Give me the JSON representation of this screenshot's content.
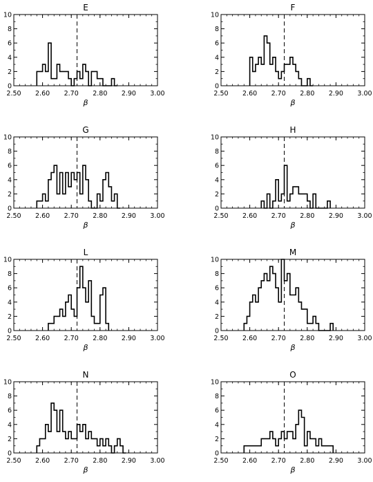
{
  "chart_data": [
    {
      "type": "histogram",
      "title": "E",
      "xlabel": "β",
      "xlim": [
        2.5,
        3.0
      ],
      "ylim": [
        0,
        10
      ],
      "xticks": [
        "2.50",
        "2.60",
        "2.70",
        "2.80",
        "2.90",
        "3.00"
      ],
      "yticks": [
        "0",
        "2",
        "4",
        "6",
        "8",
        "10"
      ],
      "bin_width": 0.01,
      "reference_line": 2.72,
      "bins": [
        2.58,
        2.59,
        2.6,
        2.61,
        2.62,
        2.63,
        2.64,
        2.65,
        2.66,
        2.67,
        2.68,
        2.69,
        2.7,
        2.71,
        2.72,
        2.73,
        2.74,
        2.75,
        2.76,
        2.77,
        2.78,
        2.79,
        2.8,
        2.81,
        2.82,
        2.83,
        2.84,
        2.85
      ],
      "values": [
        2,
        2,
        3,
        2,
        6,
        1,
        1,
        3,
        2,
        2,
        2,
        1,
        0,
        1,
        2,
        1,
        3,
        2,
        0,
        2,
        2,
        1,
        1,
        0,
        0,
        0,
        1,
        0
      ]
    },
    {
      "type": "histogram",
      "title": "F",
      "xlabel": "β",
      "xlim": [
        2.5,
        3.0
      ],
      "ylim": [
        0,
        10
      ],
      "xticks": [
        "2.50",
        "2.60",
        "2.70",
        "2.80",
        "2.90",
        "3.00"
      ],
      "yticks": [
        "0",
        "2",
        "4",
        "6",
        "8",
        "10"
      ],
      "bin_width": 0.01,
      "reference_line": 2.72,
      "bins": [
        2.6,
        2.61,
        2.62,
        2.63,
        2.64,
        2.65,
        2.66,
        2.67,
        2.68,
        2.69,
        2.7,
        2.71,
        2.72,
        2.73,
        2.74,
        2.75,
        2.76,
        2.77,
        2.78,
        2.79,
        2.8,
        2.81
      ],
      "values": [
        4,
        2,
        3,
        4,
        3,
        7,
        6,
        3,
        4,
        2,
        1,
        2,
        3,
        3,
        4,
        3,
        2,
        1,
        0,
        0,
        1,
        0
      ]
    },
    {
      "type": "histogram",
      "title": "G",
      "xlabel": "β",
      "xlim": [
        2.5,
        3.0
      ],
      "ylim": [
        0,
        10
      ],
      "xticks": [
        "2.50",
        "2.60",
        "2.70",
        "2.80",
        "2.90",
        "3.00"
      ],
      "yticks": [
        "0",
        "2",
        "4",
        "6",
        "8",
        "10"
      ],
      "bin_width": 0.01,
      "reference_line": 2.72,
      "bins": [
        2.58,
        2.59,
        2.6,
        2.61,
        2.62,
        2.63,
        2.64,
        2.65,
        2.66,
        2.67,
        2.68,
        2.69,
        2.7,
        2.71,
        2.72,
        2.73,
        2.74,
        2.75,
        2.76,
        2.77,
        2.78,
        2.79,
        2.8,
        2.81,
        2.82,
        2.83,
        2.84,
        2.85,
        2.86
      ],
      "values": [
        1,
        1,
        2,
        1,
        4,
        5,
        6,
        2,
        5,
        2,
        5,
        3,
        5,
        4,
        5,
        2,
        6,
        4,
        1,
        0,
        0,
        2,
        1,
        4,
        5,
        3,
        1,
        2,
        0
      ]
    },
    {
      "type": "histogram",
      "title": "H",
      "xlabel": "β",
      "xlim": [
        2.5,
        3.0
      ],
      "ylim": [
        0,
        10
      ],
      "xticks": [
        "2.50",
        "2.60",
        "2.70",
        "2.80",
        "2.90",
        "3.00"
      ],
      "yticks": [
        "0",
        "2",
        "4",
        "6",
        "8",
        "10"
      ],
      "bin_width": 0.01,
      "reference_line": 2.72,
      "bins": [
        2.64,
        2.65,
        2.66,
        2.67,
        2.68,
        2.69,
        2.7,
        2.71,
        2.72,
        2.73,
        2.74,
        2.75,
        2.76,
        2.77,
        2.78,
        2.79,
        2.8,
        2.81,
        2.82,
        2.83,
        2.84,
        2.85,
        2.86,
        2.87
      ],
      "values": [
        1,
        0,
        2,
        0,
        1,
        4,
        1,
        2,
        6,
        1,
        2,
        3,
        3,
        2,
        2,
        2,
        1,
        0,
        2,
        0,
        0,
        0,
        0,
        1
      ]
    },
    {
      "type": "histogram",
      "title": "L",
      "xlabel": "β",
      "xlim": [
        2.5,
        3.0
      ],
      "ylim": [
        0,
        10
      ],
      "xticks": [
        "2.50",
        "2.60",
        "2.70",
        "2.80",
        "2.90",
        "3.00"
      ],
      "yticks": [
        "0",
        "2",
        "4",
        "6",
        "8",
        "10"
      ],
      "bin_width": 0.01,
      "reference_line": 2.72,
      "bins": [
        2.62,
        2.63,
        2.64,
        2.65,
        2.66,
        2.67,
        2.68,
        2.69,
        2.7,
        2.71,
        2.72,
        2.73,
        2.74,
        2.75,
        2.76,
        2.77,
        2.78,
        2.79,
        2.8,
        2.81,
        2.82
      ],
      "values": [
        1,
        1,
        2,
        2,
        3,
        2,
        4,
        5,
        3,
        2,
        6,
        9,
        6,
        4,
        7,
        2,
        1,
        1,
        5,
        6,
        1
      ]
    },
    {
      "type": "histogram",
      "title": "M",
      "xlabel": "β",
      "xlim": [
        2.5,
        3.0
      ],
      "ylim": [
        0,
        10
      ],
      "xticks": [
        "2.50",
        "2.60",
        "2.70",
        "2.80",
        "2.90",
        "3.00"
      ],
      "yticks": [
        "0",
        "2",
        "4",
        "6",
        "8",
        "10"
      ],
      "bin_width": 0.01,
      "reference_line": 2.72,
      "bins": [
        2.58,
        2.59,
        2.6,
        2.61,
        2.62,
        2.63,
        2.64,
        2.65,
        2.66,
        2.67,
        2.68,
        2.69,
        2.7,
        2.71,
        2.72,
        2.73,
        2.74,
        2.75,
        2.76,
        2.77,
        2.78,
        2.79,
        2.8,
        2.81,
        2.82,
        2.83,
        2.84,
        2.85,
        2.86,
        2.87,
        2.88
      ],
      "values": [
        1,
        2,
        4,
        5,
        4,
        6,
        7,
        8,
        7,
        9,
        8,
        6,
        4,
        10,
        7,
        8,
        5,
        5,
        6,
        4,
        3,
        3,
        1,
        1,
        2,
        1,
        0,
        0,
        0,
        0,
        1
      ]
    },
    {
      "type": "histogram",
      "title": "N",
      "xlabel": "β",
      "xlim": [
        2.5,
        3.0
      ],
      "ylim": [
        0,
        10
      ],
      "xticks": [
        "2.50",
        "2.60",
        "2.70",
        "2.80",
        "2.90",
        "3.00"
      ],
      "yticks": [
        "0",
        "2",
        "4",
        "6",
        "8",
        "10"
      ],
      "bin_width": 0.01,
      "reference_line": 2.72,
      "bins": [
        2.58,
        2.59,
        2.6,
        2.61,
        2.62,
        2.63,
        2.64,
        2.65,
        2.66,
        2.67,
        2.68,
        2.69,
        2.7,
        2.71,
        2.72,
        2.73,
        2.74,
        2.75,
        2.76,
        2.77,
        2.78,
        2.79,
        2.8,
        2.81,
        2.82,
        2.83,
        2.84,
        2.85,
        2.86,
        2.87,
        2.88
      ],
      "values": [
        1,
        2,
        2,
        4,
        3,
        7,
        6,
        3,
        6,
        3,
        2,
        3,
        2,
        2,
        4,
        3,
        4,
        2,
        3,
        2,
        2,
        1,
        2,
        1,
        2,
        1,
        0,
        1,
        2,
        1,
        0
      ]
    },
    {
      "type": "histogram",
      "title": "O",
      "xlabel": "β",
      "xlim": [
        2.5,
        3.0
      ],
      "ylim": [
        0,
        10
      ],
      "xticks": [
        "2.50",
        "2.60",
        "2.70",
        "2.80",
        "2.90",
        "3.00"
      ],
      "yticks": [
        "0",
        "2",
        "4",
        "6",
        "8",
        "10"
      ],
      "bin_width": 0.01,
      "reference_line": 2.72,
      "bins": [
        2.58,
        2.59,
        2.6,
        2.61,
        2.62,
        2.63,
        2.64,
        2.65,
        2.66,
        2.67,
        2.68,
        2.69,
        2.7,
        2.71,
        2.72,
        2.73,
        2.74,
        2.75,
        2.76,
        2.77,
        2.78,
        2.79,
        2.8,
        2.81,
        2.82,
        2.83,
        2.84,
        2.85,
        2.86,
        2.87,
        2.88
      ],
      "values": [
        1,
        1,
        1,
        1,
        1,
        1,
        2,
        2,
        2,
        3,
        2,
        1,
        2,
        3,
        2,
        3,
        3,
        2,
        4,
        6,
        5,
        1,
        3,
        2,
        2,
        1,
        2,
        1,
        1,
        1,
        1
      ]
    }
  ]
}
